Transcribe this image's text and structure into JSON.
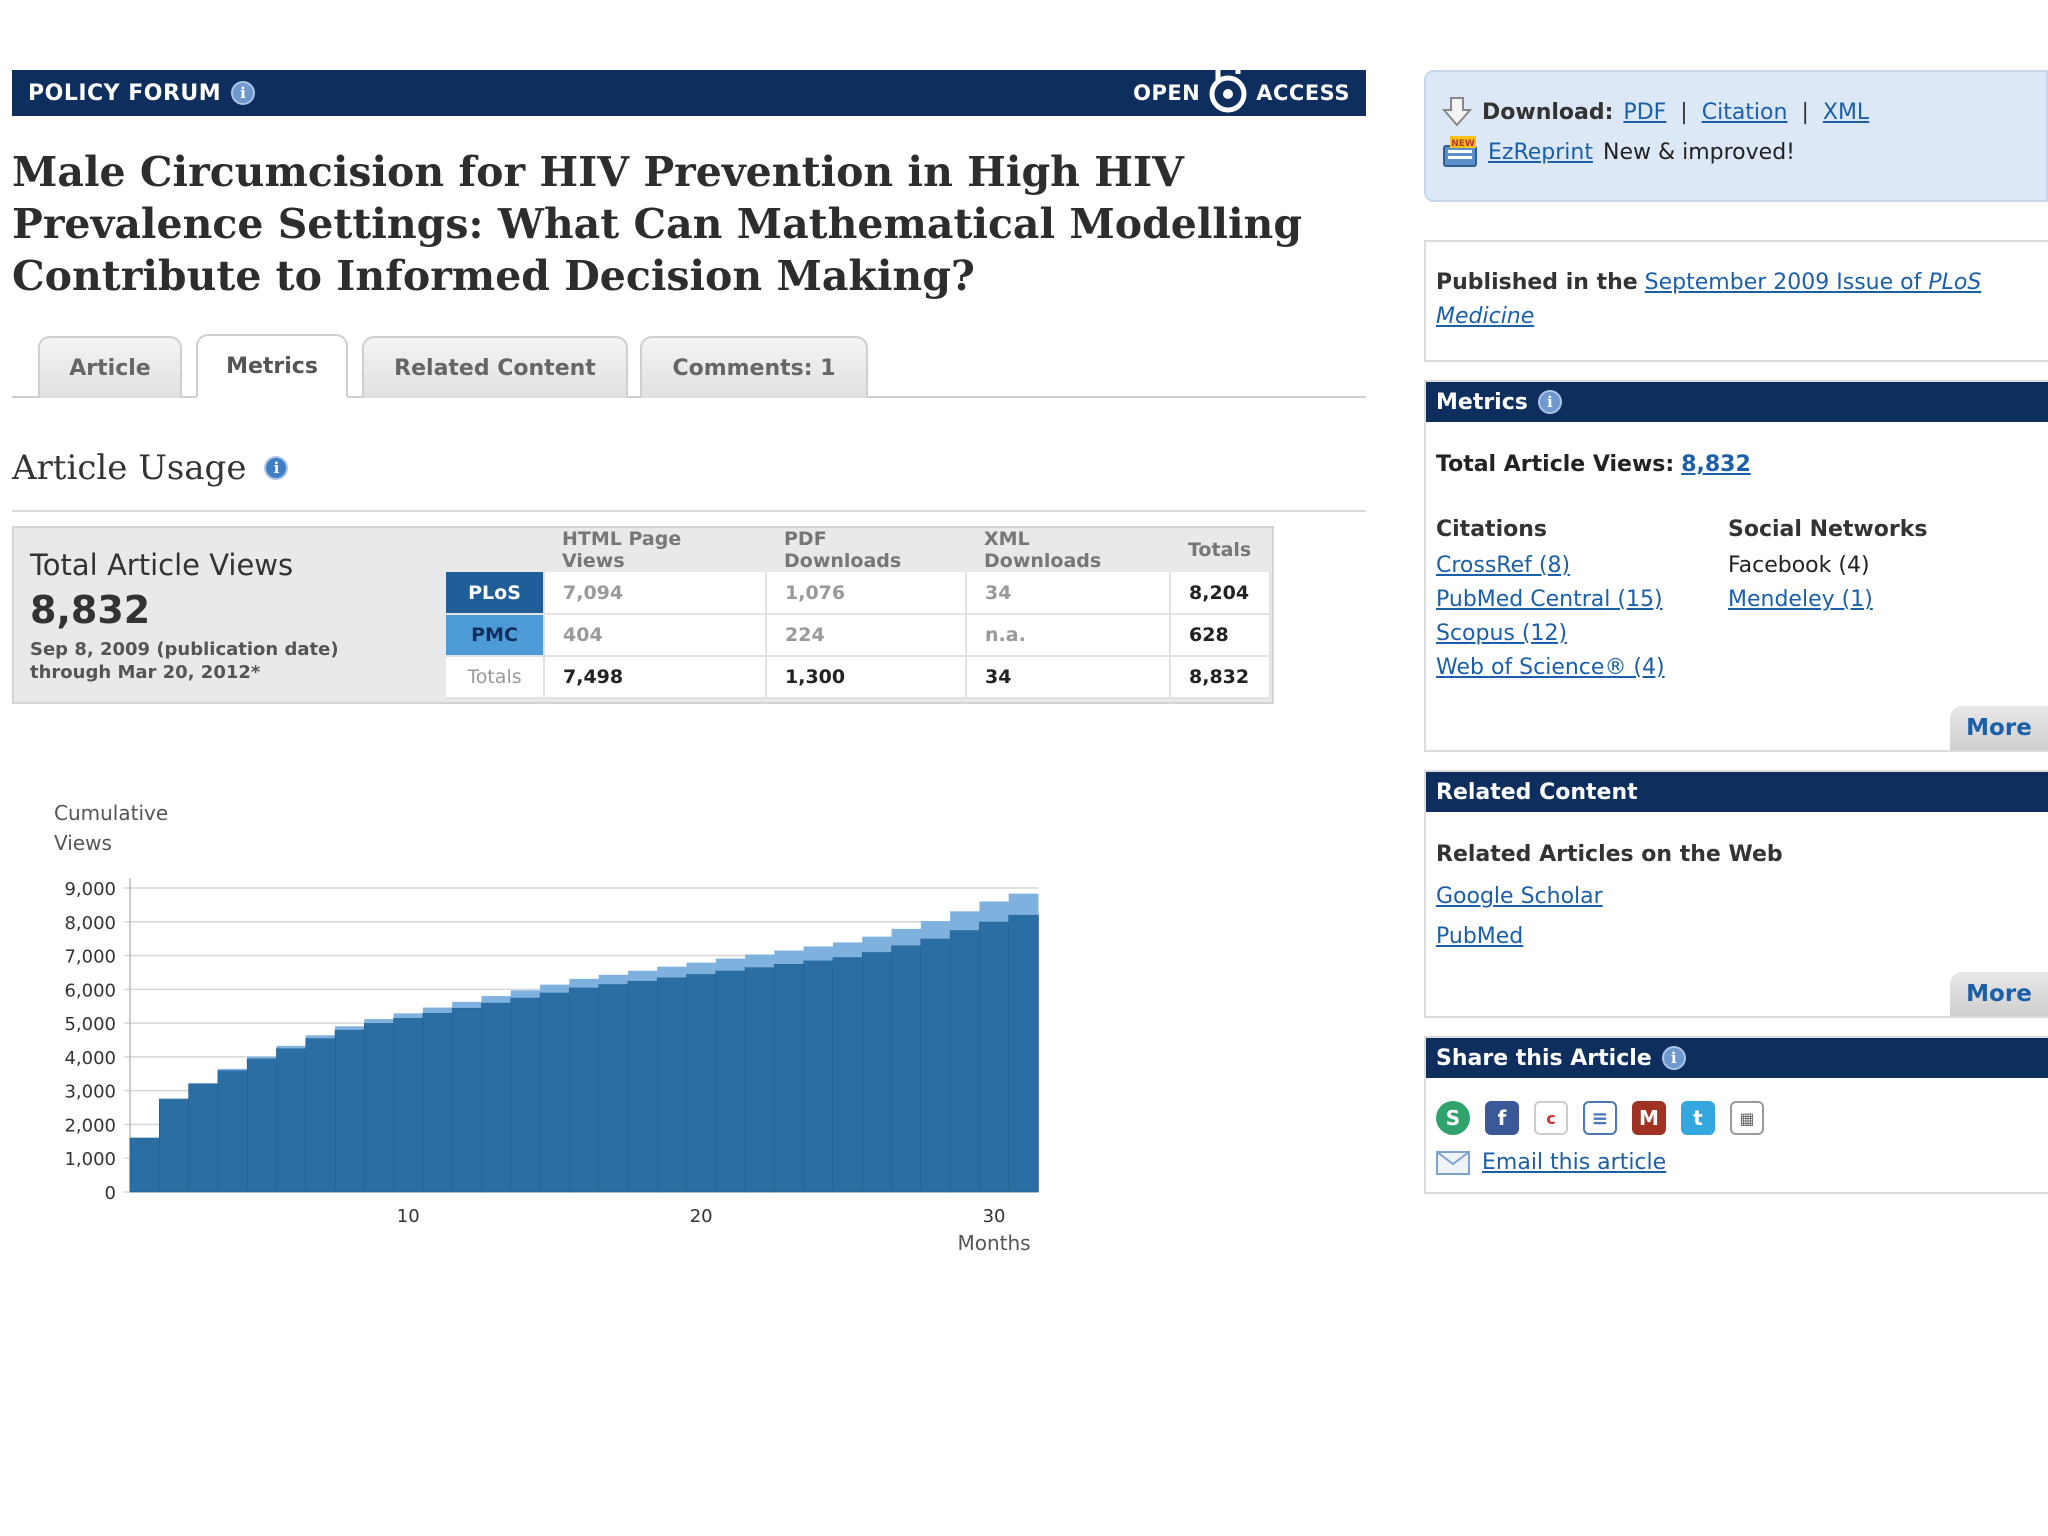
{
  "header": {
    "section_label": "POLICY FORUM",
    "open_label": "OPEN",
    "access_label": "ACCESS"
  },
  "article": {
    "title": "Male Circumcision for HIV Prevention in High HIV Prevalence Settings: What Can Mathematical Modelling Contribute to Informed Decision Making?"
  },
  "tabs": [
    {
      "label": "Article"
    },
    {
      "label": "Metrics"
    },
    {
      "label": "Related Content"
    },
    {
      "label": "Comments: 1"
    }
  ],
  "usage": {
    "heading": "Article Usage",
    "total_label": "Total Article Views",
    "total_value": "8,832",
    "range_line1": "Sep 8, 2009 (publication date)",
    "range_line2": "through Mar 20, 2012*",
    "columns": [
      "HTML Page Views",
      "PDF Downloads",
      "XML Downloads",
      "Totals"
    ],
    "rows": [
      {
        "source": "PLoS",
        "html": "7,094",
        "pdf": "1,076",
        "xml": "34",
        "total": "8,204"
      },
      {
        "source": "PMC",
        "html": "404",
        "pdf": "224",
        "xml": "n.a.",
        "total": "628"
      }
    ],
    "totals_row": {
      "label": "Totals",
      "html": "7,498",
      "pdf": "1,300",
      "xml": "34",
      "total": "8,832"
    }
  },
  "chart_data": {
    "type": "bar",
    "stacked": true,
    "ylabel": "Cumulative Views",
    "xlabel": "Months",
    "ylim": [
      0,
      9000
    ],
    "yticks": [
      "0",
      "1,000",
      "2,000",
      "3,000",
      "4,000",
      "5,000",
      "6,000",
      "7,000",
      "8,000",
      "9,000"
    ],
    "xticks": [
      10,
      20,
      30
    ],
    "categories": [
      1,
      2,
      3,
      4,
      5,
      6,
      7,
      8,
      9,
      10,
      11,
      12,
      13,
      14,
      15,
      16,
      17,
      18,
      19,
      20,
      21,
      22,
      23,
      24,
      25,
      26,
      27,
      28,
      29,
      30,
      31
    ],
    "series": [
      {
        "name": "PLoS",
        "color": "#2b6ea3",
        "values": [
          1600,
          2750,
          3200,
          3600,
          3950,
          4250,
          4550,
          4800,
          5000,
          5150,
          5300,
          5450,
          5600,
          5750,
          5900,
          6050,
          6150,
          6250,
          6350,
          6450,
          6550,
          6650,
          6750,
          6850,
          6950,
          7100,
          7300,
          7500,
          7750,
          8000,
          8204
        ]
      },
      {
        "name": "PMC",
        "color": "#7fb1df",
        "values": [
          10,
          20,
          30,
          45,
          60,
          75,
          90,
          105,
          120,
          140,
          160,
          180,
          200,
          220,
          240,
          260,
          280,
          300,
          320,
          340,
          360,
          380,
          400,
          420,
          440,
          460,
          490,
          520,
          560,
          600,
          628
        ]
      }
    ]
  },
  "download": {
    "label": "Download:",
    "pdf": "PDF",
    "citation": "Citation",
    "xml": "XML",
    "new_badge": "NEW",
    "ezreprint": "EzReprint",
    "ezreprint_note": "New & improved!"
  },
  "published": {
    "prefix": "Published in the",
    "issue_link_a": "September 2009 Issue of ",
    "issue_link_b": "PLoS",
    "issue_link_c": "Medicine"
  },
  "metrics_panel": {
    "title": "Metrics",
    "total_label": "Total Article Views:",
    "total_value": "8,832",
    "citations_heading": "Citations",
    "citations": [
      "CrossRef (8)",
      "PubMed Central (15)",
      "Scopus (12)",
      "Web of Science® (4)"
    ],
    "social_heading": "Social Networks",
    "social_facebook": "Facebook (4)",
    "social_mendeley": "Mendeley (1)",
    "more": "More"
  },
  "related_panel": {
    "title": "Related Content",
    "subheading": "Related Articles on the Web",
    "links": [
      "Google Scholar",
      "PubMed"
    ],
    "more": "More"
  },
  "share_panel": {
    "title": "Share this Article",
    "icons": [
      "stumbleupon-icon",
      "facebook-icon",
      "connotea-icon",
      "citeulike-icon",
      "mendeley-icon",
      "twitter-icon",
      "delicious-icon"
    ],
    "email_label": "Email this article"
  }
}
